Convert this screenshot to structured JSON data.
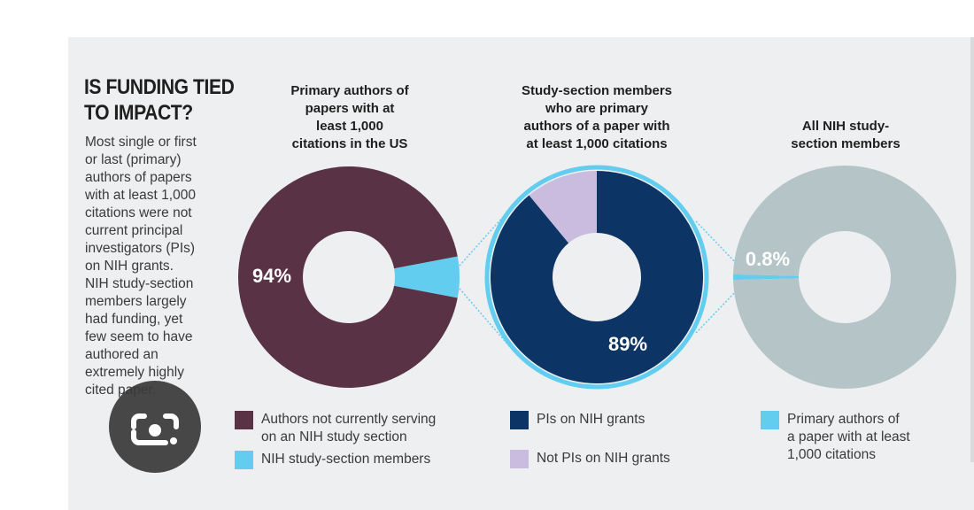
{
  "title_lines": [
    "IS FUNDING TIED",
    "TO IMPACT?"
  ],
  "intro_lines": [
    "Most single or first",
    "or last (primary)",
    "authors of papers",
    "with at least 1,000",
    "citations were not",
    "current principal",
    "investigators (PIs)",
    "on NIH grants.",
    "NIH study-section",
    "members largely",
    "had funding, yet",
    "few seem to have",
    "authored an",
    "extremely highly",
    "cited paper."
  ],
  "chart_data": [
    {
      "type": "pie",
      "variant": "donut",
      "title_lines": [
        "Primary authors of",
        "papers with at",
        "least 1,000",
        "citations in the US"
      ],
      "slices": [
        {
          "label": "Authors not currently serving on an NIH study section",
          "value": 94,
          "color": "#5a3245"
        },
        {
          "label": "NIH study-section members",
          "value": 6,
          "color": "#62cdef"
        }
      ],
      "data_labels": [
        {
          "text": "94%",
          "slice": 0
        }
      ]
    },
    {
      "type": "pie",
      "variant": "donut",
      "title_lines": [
        "Study-section members",
        "who are primary",
        "authors of a paper with",
        "at least 1,000 citations"
      ],
      "slices": [
        {
          "label": "PIs on NIH grants",
          "value": 89,
          "color": "#0c3565"
        },
        {
          "label": "Not PIs on NIH grants",
          "value": 11,
          "color": "#c9bcdf"
        }
      ],
      "data_labels": [
        {
          "text": "89%",
          "slice": 0
        }
      ]
    },
    {
      "type": "pie",
      "variant": "donut",
      "title_lines": [
        "All NIH study-",
        "section members"
      ],
      "slices": [
        {
          "label": "Primary authors of a paper with at least 1,000 citations",
          "value": 0.8,
          "color": "#62cdef"
        },
        {
          "label": "",
          "value": 99.2,
          "color": "#b4c4c7"
        }
      ],
      "data_labels": [
        {
          "text": "0.8%",
          "slice": 0
        }
      ]
    }
  ],
  "legend": [
    {
      "lines": [
        "Authors not currently serving",
        "on an NIH study section"
      ],
      "color": "#5a3245"
    },
    {
      "lines": [
        "NIH study-section members"
      ],
      "color": "#62cdef"
    },
    {
      "lines": [
        "PIs on NIH grants"
      ],
      "color": "#0c3565"
    },
    {
      "lines": [
        "Not PIs on NIH grants"
      ],
      "color": "#c9bcdf"
    },
    {
      "lines": [
        "Primary authors of",
        "a paper with at least",
        "1,000 citations"
      ],
      "color": "#62cdef"
    }
  ],
  "connector_color": "#62cdef",
  "lens_icon": "google-lens-icon"
}
